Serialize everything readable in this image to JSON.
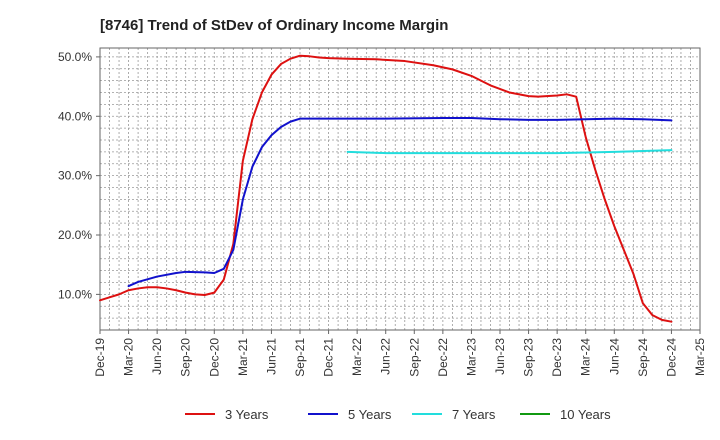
{
  "chart_data": {
    "type": "line",
    "title": "[8746]  Trend of StDev of Ordinary Income Margin",
    "xlabel": "",
    "ylabel": "",
    "ylim": [
      4.0,
      51.5
    ],
    "yticks": [
      10,
      20,
      30,
      40,
      50
    ],
    "ytick_labels": [
      "10.0%",
      "20.0%",
      "30.0%",
      "40.0%",
      "50.0%"
    ],
    "x_ticks": [
      "Dec-19",
      "Mar-20",
      "Jun-20",
      "Sep-20",
      "Dec-20",
      "Mar-21",
      "Jun-21",
      "Sep-21",
      "Dec-21",
      "Mar-22",
      "Jun-22",
      "Sep-22",
      "Dec-22",
      "Mar-23",
      "Jun-23",
      "Sep-23",
      "Dec-23",
      "Mar-24",
      "Jun-24",
      "Sep-24",
      "Dec-24",
      "Mar-25"
    ],
    "grid": true,
    "legend_position": "bottom",
    "series": [
      {
        "name": "3 Years",
        "color": "#dd1111",
        "points": [
          [
            "Dec-19",
            9.0
          ],
          [
            "Jan-20",
            9.5
          ],
          [
            "Feb-20",
            10.0
          ],
          [
            "Mar-20",
            10.7
          ],
          [
            "Apr-20",
            11.0
          ],
          [
            "May-20",
            11.2
          ],
          [
            "Jun-20",
            11.2
          ],
          [
            "Jul-20",
            11.0
          ],
          [
            "Aug-20",
            10.7
          ],
          [
            "Sep-20",
            10.3
          ],
          [
            "Oct-20",
            10.0
          ],
          [
            "Nov-20",
            9.9
          ],
          [
            "Dec-20",
            10.3
          ],
          [
            "Jan-21",
            12.5
          ],
          [
            "Feb-21",
            18.5
          ],
          [
            "Mar-21",
            32.5
          ],
          [
            "Apr-21",
            39.5
          ],
          [
            "May-21",
            44.0
          ],
          [
            "Jun-21",
            47.0
          ],
          [
            "Jul-21",
            48.8
          ],
          [
            "Aug-21",
            49.7
          ],
          [
            "Sep-21",
            50.2
          ],
          [
            "Oct-21",
            50.1
          ],
          [
            "Nov-21",
            49.9
          ],
          [
            "Dec-21",
            49.8
          ],
          [
            "Feb-22",
            49.7
          ],
          [
            "May-22",
            49.6
          ],
          [
            "Aug-22",
            49.3
          ],
          [
            "Nov-22",
            48.6
          ],
          [
            "Jan-23",
            47.9
          ],
          [
            "Mar-23",
            46.8
          ],
          [
            "May-23",
            45.2
          ],
          [
            "Jul-23",
            44.0
          ],
          [
            "Sep-23",
            43.4
          ],
          [
            "Oct-23",
            43.3
          ],
          [
            "Dec-23",
            43.5
          ],
          [
            "Jan-24",
            43.7
          ],
          [
            "Feb-24",
            43.3
          ],
          [
            "Mar-24",
            36.5
          ],
          [
            "Apr-24",
            31.0
          ],
          [
            "May-24",
            26.0
          ],
          [
            "Jun-24",
            21.5
          ],
          [
            "Jul-24",
            17.5
          ],
          [
            "Aug-24",
            13.5
          ],
          [
            "Sep-24",
            8.5
          ],
          [
            "Oct-24",
            6.5
          ],
          [
            "Nov-24",
            5.7
          ],
          [
            "Dec-24",
            5.4
          ]
        ]
      },
      {
        "name": "5 Years",
        "color": "#1111cc",
        "points": [
          [
            "Mar-20",
            11.4
          ],
          [
            "Apr-20",
            12.1
          ],
          [
            "Jun-20",
            13.0
          ],
          [
            "Aug-20",
            13.6
          ],
          [
            "Sep-20",
            13.8
          ],
          [
            "Nov-20",
            13.7
          ],
          [
            "Dec-20",
            13.6
          ],
          [
            "Jan-21",
            14.3
          ],
          [
            "Feb-21",
            17.5
          ],
          [
            "Mar-21",
            26.0
          ],
          [
            "Apr-21",
            31.5
          ],
          [
            "May-21",
            34.8
          ],
          [
            "Jun-21",
            36.8
          ],
          [
            "Jul-21",
            38.2
          ],
          [
            "Aug-21",
            39.1
          ],
          [
            "Sep-21",
            39.6
          ],
          [
            "Dec-21",
            39.6
          ],
          [
            "Jun-22",
            39.6
          ],
          [
            "Dec-22",
            39.7
          ],
          [
            "Mar-23",
            39.7
          ],
          [
            "Jun-23",
            39.5
          ],
          [
            "Sep-23",
            39.4
          ],
          [
            "Dec-23",
            39.4
          ],
          [
            "Jun-24",
            39.6
          ],
          [
            "Sep-24",
            39.5
          ],
          [
            "Dec-24",
            39.3
          ]
        ]
      },
      {
        "name": "7 Years",
        "color": "#22dddd",
        "points": [
          [
            "Feb-22",
            34.0
          ],
          [
            "Jun-22",
            33.8
          ],
          [
            "Dec-22",
            33.8
          ],
          [
            "Jun-23",
            33.8
          ],
          [
            "Dec-23",
            33.8
          ],
          [
            "Jun-24",
            34.0
          ],
          [
            "Dec-24",
            34.3
          ]
        ]
      },
      {
        "name": "10 Years",
        "color": "#119911",
        "points": []
      }
    ]
  }
}
